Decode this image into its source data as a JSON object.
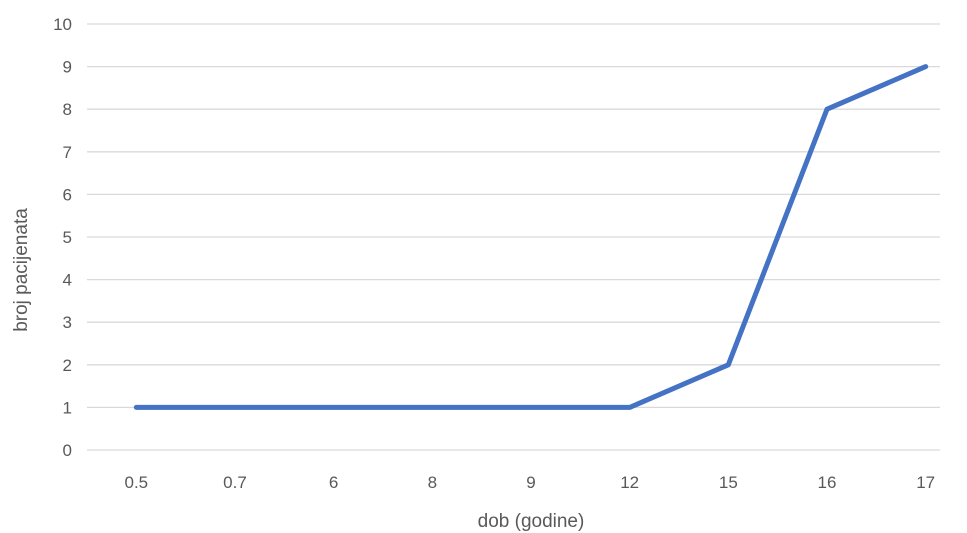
{
  "chart_data": {
    "type": "line",
    "title": "",
    "xlabel": "dob (godine)",
    "ylabel": "broj pacijenata",
    "categories": [
      "0.5",
      "0.7",
      "6",
      "8",
      "9",
      "12",
      "15",
      "16",
      "17"
    ],
    "series": [
      {
        "values": [
          1,
          1,
          1,
          1,
          1,
          1,
          2,
          8,
          9
        ],
        "color": "#4472C4"
      }
    ],
    "ylim": [
      0,
      10
    ],
    "yticks": [
      0,
      1,
      2,
      3,
      4,
      5,
      6,
      7,
      8,
      9,
      10
    ],
    "grid": true,
    "legend": "none",
    "gridline_color": "#D9D9D9"
  }
}
